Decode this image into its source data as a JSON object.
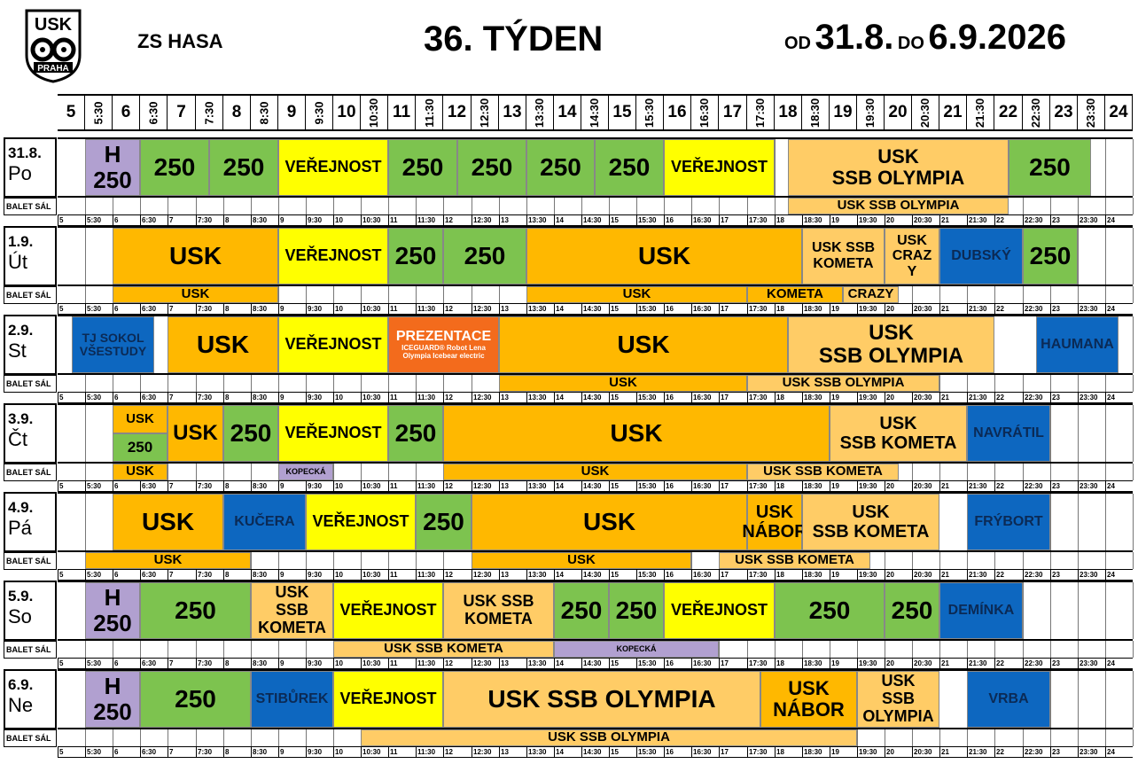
{
  "header": {
    "logo_text": "USK PRAHA",
    "venue": "ZS HASA",
    "week": "36. TÝDEN",
    "od": "OD",
    "date_from": "31.8.",
    "do": "DO",
    "date_to": "6.9.2026"
  },
  "balet_label": "BALET SÁL",
  "hours": [
    "5",
    "5:30",
    "6",
    "6:30",
    "7",
    "7:30",
    "8",
    "8:30",
    "9",
    "9:30",
    "10",
    "10:30",
    "11",
    "11:30",
    "12",
    "12:30",
    "13",
    "13:30",
    "14",
    "14:30",
    "15",
    "15:30",
    "16",
    "16:30",
    "17",
    "17:30",
    "18",
    "18:30",
    "19",
    "19:30",
    "20",
    "20:30",
    "21",
    "21:30",
    "22",
    "22:30",
    "23",
    "23:30",
    "24"
  ],
  "days": [
    {
      "date": "31.8.",
      "name": "Po",
      "blocks": [
        {
          "s": 1,
          "e": 3,
          "text": [
            "H",
            "250"
          ],
          "color": "p",
          "size": 26
        },
        {
          "s": 3,
          "e": 5.5,
          "text": [
            "250"
          ],
          "color": "g",
          "size": 28
        },
        {
          "s": 5.5,
          "e": 8,
          "text": [
            "250"
          ],
          "color": "g",
          "size": 28
        },
        {
          "s": 8,
          "e": 12,
          "text": [
            "VEŘEJNOST"
          ],
          "color": "y",
          "size": 18
        },
        {
          "s": 12,
          "e": 14.5,
          "text": [
            "250"
          ],
          "color": "g",
          "size": 28
        },
        {
          "s": 14.5,
          "e": 17,
          "text": [
            "250"
          ],
          "color": "g",
          "size": 28
        },
        {
          "s": 17,
          "e": 19.5,
          "text": [
            "250"
          ],
          "color": "g",
          "size": 28
        },
        {
          "s": 19.5,
          "e": 22,
          "text": [
            "250"
          ],
          "color": "g",
          "size": 28
        },
        {
          "s": 22,
          "e": 26,
          "text": [
            "VEŘEJNOST"
          ],
          "color": "y",
          "size": 18
        },
        {
          "s": 26.5,
          "e": 34.5,
          "text": [
            "USK",
            "SSB OLYMPIA"
          ],
          "color": "lo",
          "size": 22
        },
        {
          "s": 34.5,
          "e": 37.5,
          "text": [
            "250"
          ],
          "color": "g",
          "size": 28
        }
      ],
      "balet": [
        {
          "s": 26.5,
          "e": 34.5,
          "text": "USK SSB OLYMPIA",
          "color": "lo"
        }
      ]
    },
    {
      "date": "1.9.",
      "name": "Út",
      "blocks": [
        {
          "s": 2,
          "e": 8,
          "text": [
            "USK"
          ],
          "color": "o",
          "size": 28
        },
        {
          "s": 8,
          "e": 12,
          "text": [
            "VEŘEJNOST"
          ],
          "color": "y",
          "size": 18
        },
        {
          "s": 12,
          "e": 14,
          "text": [
            "250"
          ],
          "color": "g",
          "size": 28
        },
        {
          "s": 14,
          "e": 17,
          "text": [
            "250"
          ],
          "color": "g",
          "size": 28
        },
        {
          "s": 17,
          "e": 27,
          "text": [
            "USK"
          ],
          "color": "o",
          "size": 28
        },
        {
          "s": 27,
          "e": 30,
          "text": [
            "USK SSB",
            "KOMETA"
          ],
          "color": "lo",
          "size": 16
        },
        {
          "s": 30,
          "e": 32,
          "text": [
            "USK",
            "CRAZ",
            "Y"
          ],
          "color": "lo",
          "size": 16
        },
        {
          "s": 32,
          "e": 35,
          "text": [
            "DUBSKÝ"
          ],
          "color": "b",
          "size": 16
        },
        {
          "s": 35,
          "e": 37,
          "text": [
            "250"
          ],
          "color": "g",
          "size": 28
        }
      ],
      "balet": [
        {
          "s": 2,
          "e": 8,
          "text": "USK",
          "color": "o"
        },
        {
          "s": 17,
          "e": 25,
          "text": "USK",
          "color": "o"
        },
        {
          "s": 25,
          "e": 28.5,
          "text": "KOMETA",
          "color": "o"
        },
        {
          "s": 28.5,
          "e": 30.5,
          "text": "CRAZY",
          "color": "lo"
        }
      ]
    },
    {
      "date": "2.9.",
      "name": "St",
      "blocks": [
        {
          "s": 0.5,
          "e": 3.5,
          "text": [
            "TJ SOKOL",
            "VŠESTUDY"
          ],
          "color": "b",
          "size": 14
        },
        {
          "s": 3.5,
          "e": 4,
          "text": [
            ""
          ],
          "color": "w",
          "size": 10
        },
        {
          "s": 4,
          "e": 8,
          "text": [
            "USK"
          ],
          "color": "o",
          "size": 28
        },
        {
          "s": 8,
          "e": 12,
          "text": [
            "VEŘEJNOST"
          ],
          "color": "y",
          "size": 18
        },
        {
          "s": 12,
          "e": 16,
          "text": [
            "PREZENTACE",
            "ICEGUARD® Robot Lena",
            "Olympia Icebear electric"
          ],
          "color": "r",
          "size": 16
        },
        {
          "s": 16,
          "e": 26.5,
          "text": [
            "USK"
          ],
          "color": "o",
          "size": 28
        },
        {
          "s": 26.5,
          "e": 34,
          "text": [
            "USK",
            "SSB OLYMPIA"
          ],
          "color": "lo",
          "size": 24
        },
        {
          "s": 34,
          "e": 35.5,
          "text": [
            ""
          ],
          "color": "w",
          "size": 10
        },
        {
          "s": 35.5,
          "e": 38.5,
          "text": [
            "HAUMANA"
          ],
          "color": "b",
          "size": 16
        }
      ],
      "balet": [
        {
          "s": 16,
          "e": 25,
          "text": "USK",
          "color": "o"
        },
        {
          "s": 25,
          "e": 32,
          "text": "USK SSB OLYMPIA",
          "color": "lo"
        }
      ]
    },
    {
      "date": "3.9.",
      "name": "Čt",
      "blocks": [
        {
          "s": 2,
          "e": 4,
          "text": [
            "USK"
          ],
          "color": "o",
          "size": 15,
          "half": "top"
        },
        {
          "s": 2,
          "e": 4,
          "text": [
            "250"
          ],
          "color": "g",
          "size": 17,
          "half": "bottom"
        },
        {
          "s": 4,
          "e": 6,
          "text": [
            "USK"
          ],
          "color": "o",
          "size": 24
        },
        {
          "s": 6,
          "e": 8,
          "text": [
            "250"
          ],
          "color": "g",
          "size": 28
        },
        {
          "s": 8,
          "e": 12,
          "text": [
            "VEŘEJNOST"
          ],
          "color": "y",
          "size": 18
        },
        {
          "s": 12,
          "e": 14,
          "text": [
            "250"
          ],
          "color": "g",
          "size": 28
        },
        {
          "s": 14,
          "e": 28,
          "text": [
            "USK"
          ],
          "color": "o",
          "size": 28
        },
        {
          "s": 28,
          "e": 33,
          "text": [
            "USK",
            "SSB KOMETA"
          ],
          "color": "lo",
          "size": 20
        },
        {
          "s": 33,
          "e": 36,
          "text": [
            "NAVRÁTIL"
          ],
          "color": "b",
          "size": 16
        }
      ],
      "balet": [
        {
          "s": 2,
          "e": 4,
          "text": "USK",
          "color": "o"
        },
        {
          "s": 8,
          "e": 10,
          "text": "KOPECKÁ",
          "color": "p",
          "small": true
        },
        {
          "s": 14,
          "e": 25,
          "text": "USK",
          "color": "o"
        },
        {
          "s": 25,
          "e": 30.5,
          "text": "USK SSB KOMETA",
          "color": "lo"
        }
      ]
    },
    {
      "date": "4.9.",
      "name": "Pá",
      "blocks": [
        {
          "s": 2,
          "e": 6,
          "text": [
            "USK"
          ],
          "color": "o",
          "size": 28
        },
        {
          "s": 6,
          "e": 9,
          "text": [
            "KUČERA"
          ],
          "color": "b",
          "size": 16
        },
        {
          "s": 9,
          "e": 13,
          "text": [
            "VEŘEJNOST"
          ],
          "color": "y",
          "size": 18
        },
        {
          "s": 13,
          "e": 15,
          "text": [
            "250"
          ],
          "color": "g",
          "size": 28
        },
        {
          "s": 15,
          "e": 25,
          "text": [
            "USK"
          ],
          "color": "o",
          "size": 28
        },
        {
          "s": 25,
          "e": 27,
          "text": [
            "USK",
            "NÁBOR"
          ],
          "color": "o",
          "size": 20
        },
        {
          "s": 27,
          "e": 32,
          "text": [
            "USK",
            "SSB KOMETA"
          ],
          "color": "lo",
          "size": 20
        },
        {
          "s": 32,
          "e": 33,
          "text": [
            ""
          ],
          "color": "w",
          "size": 10
        },
        {
          "s": 33,
          "e": 36,
          "text": [
            "FRÝBORT"
          ],
          "color": "b",
          "size": 16
        }
      ],
      "balet": [
        {
          "s": 1,
          "e": 7,
          "text": "USK",
          "color": "o"
        },
        {
          "s": 15,
          "e": 23,
          "text": "USK",
          "color": "o"
        },
        {
          "s": 24,
          "e": 29.5,
          "text": "USK SSB KOMETA",
          "color": "lo"
        }
      ]
    },
    {
      "date": "5.9.",
      "name": "So",
      "blocks": [
        {
          "s": 1,
          "e": 3,
          "text": [
            "H",
            "250"
          ],
          "color": "p",
          "size": 26
        },
        {
          "s": 3,
          "e": 7,
          "text": [
            "250"
          ],
          "color": "g",
          "size": 28
        },
        {
          "s": 7,
          "e": 10,
          "text": [
            "USK",
            "SSB",
            "KOMETA"
          ],
          "color": "lo",
          "size": 18
        },
        {
          "s": 10,
          "e": 14,
          "text": [
            "VEŘEJNOST"
          ],
          "color": "y",
          "size": 18
        },
        {
          "s": 14,
          "e": 18,
          "text": [
            "USK   SSB",
            "KOMETA"
          ],
          "color": "lo",
          "size": 18
        },
        {
          "s": 18,
          "e": 20,
          "text": [
            "250"
          ],
          "color": "g",
          "size": 28
        },
        {
          "s": 20,
          "e": 22,
          "text": [
            "250"
          ],
          "color": "g",
          "size": 28
        },
        {
          "s": 22,
          "e": 26,
          "text": [
            "VEŘEJNOST"
          ],
          "color": "y",
          "size": 18
        },
        {
          "s": 26,
          "e": 30,
          "text": [
            "250"
          ],
          "color": "g",
          "size": 28
        },
        {
          "s": 30,
          "e": 32,
          "text": [
            "250"
          ],
          "color": "g",
          "size": 28
        },
        {
          "s": 32,
          "e": 35,
          "text": [
            "DEMÍNKA"
          ],
          "color": "b",
          "size": 16
        }
      ],
      "balet": [
        {
          "s": 10,
          "e": 18,
          "text": "USK SSB KOMETA",
          "color": "lo"
        },
        {
          "s": 18,
          "e": 24,
          "text": "KOPECKÁ",
          "color": "p",
          "small": true
        }
      ]
    },
    {
      "date": "6.9.",
      "name": "Ne",
      "blocks": [
        {
          "s": 1,
          "e": 3,
          "text": [
            "H",
            "250"
          ],
          "color": "p",
          "size": 26
        },
        {
          "s": 3,
          "e": 7,
          "text": [
            "250"
          ],
          "color": "g",
          "size": 28
        },
        {
          "s": 7,
          "e": 10,
          "text": [
            "STIBŮREK"
          ],
          "color": "b",
          "size": 16
        },
        {
          "s": 10,
          "e": 14,
          "text": [
            "VEŘEJNOST"
          ],
          "color": "y",
          "size": 18
        },
        {
          "s": 14,
          "e": 25.5,
          "text": [
            "USK SSB OLYMPIA"
          ],
          "color": "lo",
          "size": 28
        },
        {
          "s": 25.5,
          "e": 29,
          "text": [
            "USK",
            "NÁBOR"
          ],
          "color": "o",
          "size": 22
        },
        {
          "s": 29,
          "e": 32,
          "text": [
            "USK",
            "SSB",
            "OLYMPIA"
          ],
          "color": "lo",
          "size": 18
        },
        {
          "s": 32,
          "e": 33,
          "text": [
            ""
          ],
          "color": "w",
          "size": 10
        },
        {
          "s": 33,
          "e": 36,
          "text": [
            "VRBA"
          ],
          "color": "b",
          "size": 16
        }
      ],
      "balet": [
        {
          "s": 11,
          "e": 29,
          "text": "USK SSB OLYMPIA",
          "color": "lo"
        }
      ]
    }
  ],
  "colors": {
    "g": "#7dc34f",
    "y": "#ffff00",
    "o": "#ffb800",
    "lo": "#ffcc66",
    "p": "#b1a0d0",
    "b": "#0d67c0",
    "r": "#f36b1c",
    "w": "#ffffff"
  }
}
